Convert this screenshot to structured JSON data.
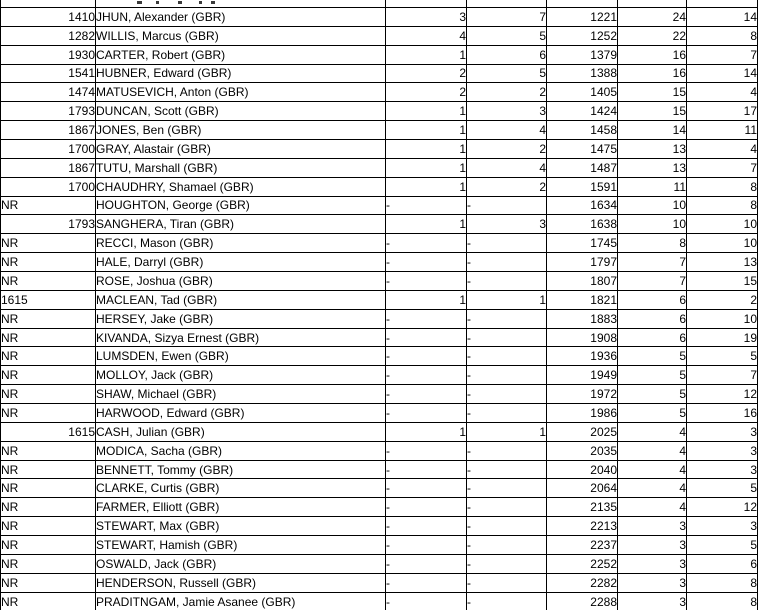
{
  "colors": {
    "background": "#ffffff",
    "gridline": "#000000",
    "text": "#000000"
  },
  "grid": {
    "left_aligned_rating_rows": [
      15
    ],
    "rows": [
      [
        "1410",
        "JHUN, Alexander (GBR)",
        "3",
        "7",
        "1221",
        "24",
        "14"
      ],
      [
        "1282",
        "WILLIS, Marcus (GBR)",
        "4",
        "5",
        "1252",
        "22",
        "8"
      ],
      [
        "1930",
        "CARTER, Robert (GBR)",
        "1",
        "6",
        "1379",
        "16",
        "7"
      ],
      [
        "1541",
        "HUBNER, Edward (GBR)",
        "2",
        "5",
        "1388",
        "16",
        "14"
      ],
      [
        "1474",
        "MATUSEVICH, Anton (GBR)",
        "2",
        "2",
        "1405",
        "15",
        "4"
      ],
      [
        "1793",
        "DUNCAN, Scott (GBR)",
        "1",
        "3",
        "1424",
        "15",
        "17"
      ],
      [
        "1867",
        "JONES, Ben (GBR)",
        "1",
        "4",
        "1458",
        "14",
        "11"
      ],
      [
        "1700",
        "GRAY, Alastair (GBR)",
        "1",
        "2",
        "1475",
        "13",
        "4"
      ],
      [
        "1867",
        "TUTU, Marshall (GBR)",
        "1",
        "4",
        "1487",
        "13",
        "7"
      ],
      [
        "1700",
        "CHAUDHRY, Shamael (GBR)",
        "1",
        "2",
        "1591",
        "11",
        "8"
      ],
      [
        "NR",
        "HOUGHTON, George (GBR)",
        "-",
        "-",
        "1634",
        "10",
        "8"
      ],
      [
        "1793",
        "SANGHERA, Tiran (GBR)",
        "1",
        "3",
        "1638",
        "10",
        "10"
      ],
      [
        "NR",
        "RECCI, Mason (GBR)",
        "-",
        "-",
        "1745",
        "8",
        "10"
      ],
      [
        "NR",
        "HALE, Darryl (GBR)",
        "-",
        "-",
        "1797",
        "7",
        "13"
      ],
      [
        "NR",
        "ROSE, Joshua (GBR)",
        "-",
        "-",
        "1807",
        "7",
        "15"
      ],
      [
        "1615",
        "MACLEAN, Tad (GBR)",
        "1",
        "1",
        "1821",
        "6",
        "2"
      ],
      [
        "NR",
        "HERSEY, Jake (GBR)",
        "-",
        "-",
        "1883",
        "6",
        "10"
      ],
      [
        "NR",
        "KIVANDA, Sizya Ernest (GBR)",
        "-",
        "-",
        "1908",
        "6",
        "19"
      ],
      [
        "NR",
        "LUMSDEN, Ewen (GBR)",
        "-",
        "-",
        "1936",
        "5",
        "5"
      ],
      [
        "NR",
        "MOLLOY, Jack (GBR)",
        "-",
        "-",
        "1949",
        "5",
        "7"
      ],
      [
        "NR",
        "SHAW, Michael (GBR)",
        "-",
        "-",
        "1972",
        "5",
        "12"
      ],
      [
        "NR",
        "HARWOOD, Edward (GBR)",
        "-",
        "-",
        "1986",
        "5",
        "16"
      ],
      [
        "1615",
        "CASH, Julian (GBR)",
        "1",
        "1",
        "2025",
        "4",
        "3"
      ],
      [
        "NR",
        "MODICA, Sacha (GBR)",
        "-",
        "-",
        "2035",
        "4",
        "3"
      ],
      [
        "NR",
        "BENNETT, Tommy (GBR)",
        "-",
        "-",
        "2040",
        "4",
        "3"
      ],
      [
        "NR",
        "CLARKE, Curtis (GBR)",
        "-",
        "-",
        "2064",
        "4",
        "5"
      ],
      [
        "NR",
        "FARMER, Elliott (GBR)",
        "-",
        "-",
        "2135",
        "4",
        "12"
      ],
      [
        "NR",
        "STEWART, Max (GBR)",
        "-",
        "-",
        "2213",
        "3",
        "3"
      ],
      [
        "NR",
        "STEWART, Hamish (GBR)",
        "-",
        "-",
        "2237",
        "3",
        "5"
      ],
      [
        "NR",
        "OSWALD, Jack (GBR)",
        "-",
        "-",
        "2252",
        "3",
        "6"
      ],
      [
        "NR",
        "HENDERSON, Russell (GBR)",
        "-",
        "-",
        "2282",
        "3",
        "8"
      ],
      [
        "NR",
        "PRADITNGAM, Jamie Asanee (GBR)",
        "-",
        "-",
        "2288",
        "3",
        "8"
      ]
    ]
  }
}
